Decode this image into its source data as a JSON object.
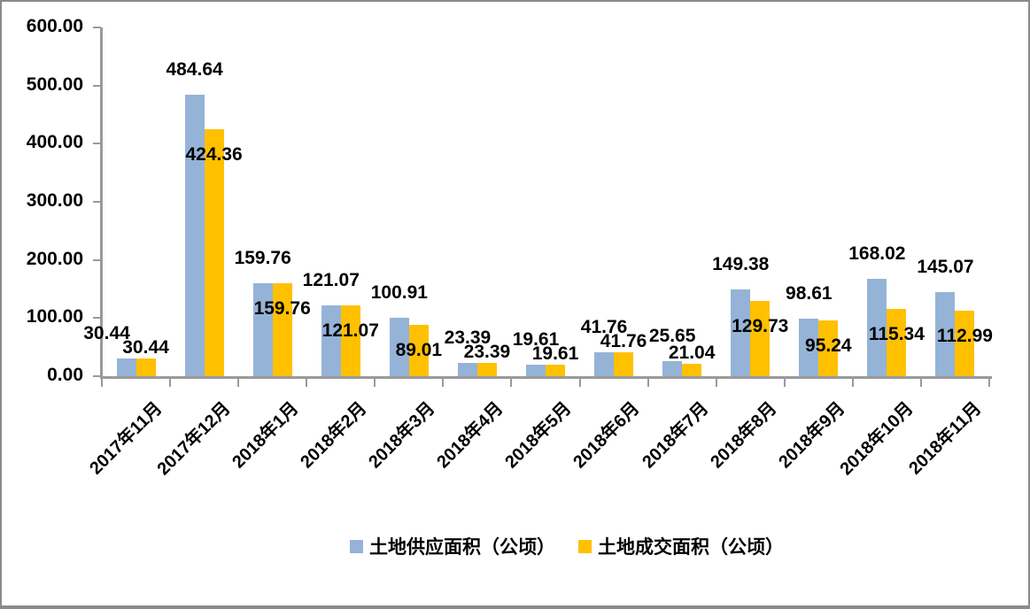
{
  "chart_data": {
    "type": "bar",
    "title": "",
    "categories": [
      "2017年11月",
      "2017年12月",
      "2018年1月",
      "2018年2月",
      "2018年3月",
      "2018年4月",
      "2018年5月",
      "2018年6月",
      "2018年7月",
      "2018年8月",
      "2018年9月",
      "2018年10月",
      "2018年11月"
    ],
    "series": [
      {
        "name": "土地供应面积（公顷）",
        "color": "#95B3D7",
        "values": [
          30.44,
          484.64,
          159.76,
          121.07,
          100.91,
          23.39,
          19.61,
          41.76,
          25.65,
          149.38,
          98.61,
          168.02,
          145.07
        ]
      },
      {
        "name": "土地成交面积（公顷）",
        "color": "#FFC000",
        "values": [
          30.44,
          424.36,
          159.76,
          121.07,
          89.01,
          23.39,
          19.61,
          41.76,
          21.04,
          129.73,
          95.24,
          115.34,
          112.99
        ]
      }
    ],
    "ylim": [
      0,
      600
    ],
    "ytick_step": 100,
    "ytick_labels": [
      "0.00",
      "100.00",
      "200.00",
      "300.00",
      "400.00",
      "500.00",
      "600.00"
    ],
    "value_labels": true,
    "value_label_decimals": 2,
    "grid": false,
    "legend_position": "bottom"
  },
  "colors": {
    "axis": "#9a9a9a",
    "text": "#000000",
    "border": "#8a8a8a",
    "background": "#ffffff"
  }
}
